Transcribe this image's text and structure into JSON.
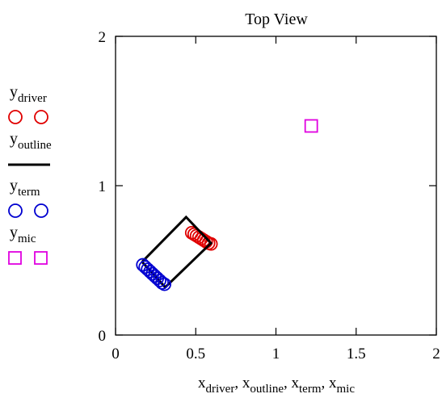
{
  "chart_data": {
    "type": "scatter",
    "title": "Top View",
    "xlim": [
      0,
      2
    ],
    "ylim": [
      0,
      2
    ],
    "x_ticks": [
      "0",
      "0.5",
      "1",
      "1.5",
      "2"
    ],
    "y_ticks": [
      "0",
      "1",
      "2"
    ],
    "x_tick_values": [
      0,
      0.5,
      1,
      1.5,
      2
    ],
    "y_tick_values": [
      0,
      1,
      2
    ],
    "xlabel_parts": [
      {
        "base": "x",
        "sub": "driver"
      },
      {
        "base": "x",
        "sub": "outline"
      },
      {
        "base": "x",
        "sub": "term"
      },
      {
        "base": "x",
        "sub": "mic"
      }
    ],
    "legend_position": "left",
    "grid": false,
    "series": [
      {
        "name": "driver",
        "label_base": "y",
        "marker": "circle",
        "color": "#e00000",
        "points": [
          [
            0.475,
            0.685
          ],
          [
            0.49,
            0.675
          ],
          [
            0.505,
            0.665
          ],
          [
            0.52,
            0.655
          ],
          [
            0.535,
            0.645
          ],
          [
            0.55,
            0.635
          ],
          [
            0.565,
            0.625
          ],
          [
            0.58,
            0.615
          ],
          [
            0.595,
            0.61
          ]
        ]
      },
      {
        "name": "outline",
        "label_base": "y",
        "marker": "line",
        "color": "#000000",
        "points": [
          [
            0.165,
            0.49
          ],
          [
            0.44,
            0.79
          ],
          [
            0.595,
            0.615
          ],
          [
            0.31,
            0.32
          ],
          [
            0.165,
            0.49
          ]
        ]
      },
      {
        "name": "term",
        "label_base": "y",
        "marker": "circle",
        "color": "#0000d0",
        "points": [
          [
            0.17,
            0.47
          ],
          [
            0.185,
            0.455
          ],
          [
            0.2,
            0.44
          ],
          [
            0.215,
            0.425
          ],
          [
            0.23,
            0.41
          ],
          [
            0.245,
            0.395
          ],
          [
            0.26,
            0.38
          ],
          [
            0.275,
            0.365
          ],
          [
            0.29,
            0.35
          ],
          [
            0.305,
            0.34
          ]
        ]
      },
      {
        "name": "mic",
        "label_base": "y",
        "marker": "square",
        "color": "#e000e0",
        "points": [
          [
            1.22,
            1.4
          ]
        ]
      }
    ]
  }
}
